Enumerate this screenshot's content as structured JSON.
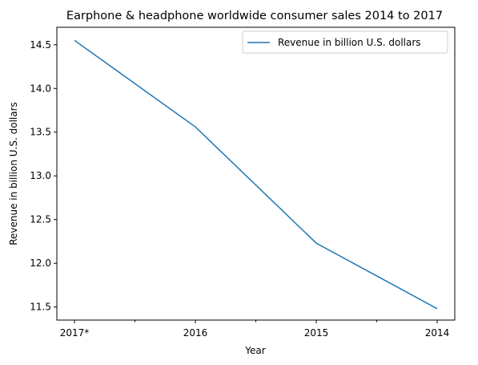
{
  "chart_data": {
    "type": "line",
    "title": "Earphone & headphone worldwide consumer sales 2014 to 2017",
    "xlabel": "Year",
    "ylabel": "Revenue in billion U.S. dollars",
    "categories": [
      "2017*",
      "2016",
      "2015",
      "2014"
    ],
    "series": [
      {
        "name": "Revenue in billion U.S. dollars",
        "values": [
          14.55,
          13.56,
          12.23,
          11.48
        ],
        "color": "#1f77b4"
      }
    ],
    "ylim": [
      11.35,
      14.7
    ],
    "yticks": [
      "11.5",
      "12.0",
      "12.5",
      "13.0",
      "13.5",
      "14.0",
      "14.5"
    ],
    "grid": false,
    "legend": "top-right"
  }
}
